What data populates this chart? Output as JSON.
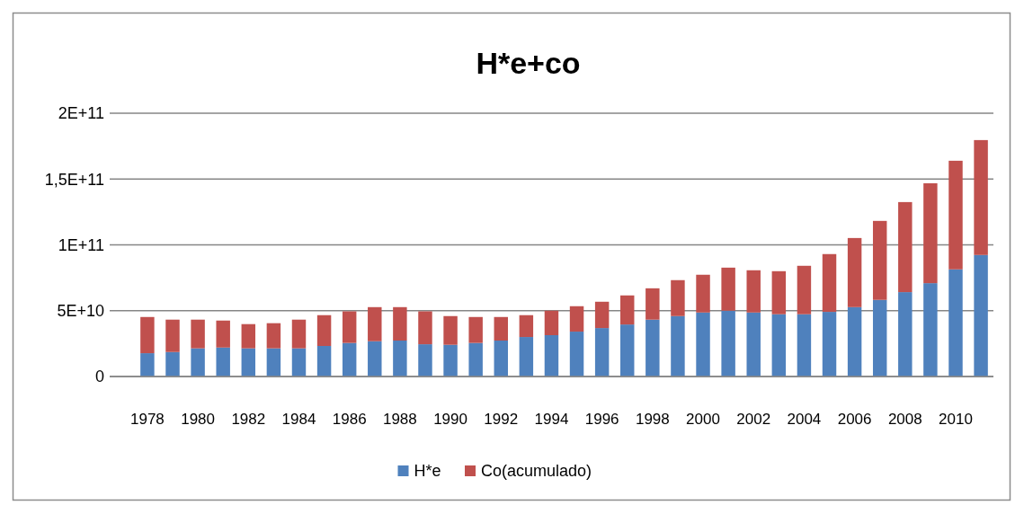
{
  "chart_data": {
    "type": "bar",
    "title": "H*e+co",
    "stacked": true,
    "categories": [
      "1978",
      null,
      "1980",
      null,
      "1982",
      null,
      "1984",
      null,
      "1986",
      null,
      "1988",
      null,
      "1990",
      null,
      "1992",
      null,
      "1994",
      null,
      "1996",
      null,
      "1998",
      null,
      "2000",
      null,
      "2002",
      null,
      "2004",
      null,
      "2006",
      null,
      "2008",
      null,
      "2010",
      null
    ],
    "series": [
      {
        "name": "H*e",
        "color": "#4f81bd",
        "values": [
          17700000000.0,
          18600000000.0,
          21400000000.0,
          22000000000.0,
          21400000000.0,
          21400000000.0,
          21400000000.0,
          23200000000.0,
          25500000000.0,
          26800000000.0,
          27300000000.0,
          24500000000.0,
          24100000000.0,
          25500000000.0,
          27300000000.0,
          30000000000.0,
          31400000000.0,
          34100000000.0,
          36800000000.0,
          39500000000.0,
          43200000000.0,
          45900000000.0,
          48600000000.0,
          50000000000.0,
          48600000000.0,
          47300000000.0,
          47300000000.0,
          49100000000.0,
          52700000000.0,
          58200000000.0,
          64100000000.0,
          70900000000.0,
          81400000000.0,
          92300000000.0
        ]
      },
      {
        "name": "Co(acumulado)",
        "color": "#c0504d",
        "values": [
          27500000000.0,
          24600000000.0,
          21800000000.0,
          20500000000.0,
          18400000000.0,
          19100000000.0,
          21800000000.0,
          23400000000.0,
          24000000000.0,
          25900000000.0,
          25400000000.0,
          25000000000.0,
          21800000000.0,
          19700000000.0,
          17900000000.0,
          16600000000.0,
          18600000000.0,
          19300000000.0,
          20000000000.0,
          22100000000.0,
          23800000000.0,
          27300000000.0,
          28700000000.0,
          32700000000.0,
          32100000000.0,
          32700000000.0,
          36800000000.0,
          43900000000.0,
          52500000000.0,
          60000000000.0,
          68400000000.0,
          75900000000.0,
          82500000000.0,
          87300000000.0
        ]
      }
    ],
    "ylim": [
      0,
      200000000000.0
    ],
    "yticks": [
      0,
      {
        "value": 50000000000.0,
        "label": "5E+10"
      },
      {
        "value": 100000000000.0,
        "label": "1E+11"
      },
      {
        "value": 150000000000.0,
        "label": "1,5E+11"
      },
      {
        "value": 200000000000.0,
        "label": "2E+11"
      }
    ],
    "grid": "y",
    "legend": "bottom"
  }
}
